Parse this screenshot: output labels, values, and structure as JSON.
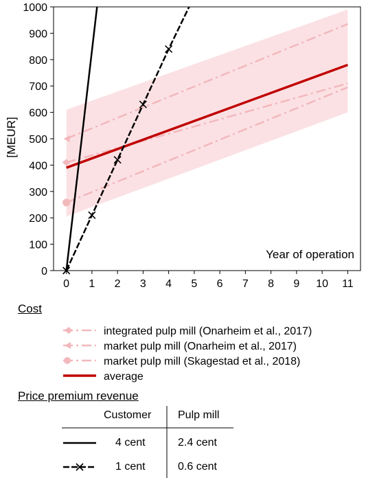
{
  "chart_data": {
    "type": "line",
    "ylabel": "[MEUR]",
    "xlabel": "Year of operation",
    "xlim": [
      -0.5,
      11.5
    ],
    "ylim": [
      0,
      1000
    ],
    "x_ticks": [
      0,
      1,
      2,
      3,
      4,
      5,
      6,
      7,
      8,
      9,
      10,
      11
    ],
    "y_ticks": [
      0,
      100,
      200,
      300,
      400,
      500,
      600,
      700,
      800,
      900,
      1000
    ],
    "grid": false,
    "cost_band": {
      "x": [
        0,
        11
      ],
      "lower": [
        205,
        600
      ],
      "upper": [
        610,
        990
      ],
      "color": "#fadadd"
    },
    "series": [
      {
        "name": "integrated pulp mill (Onarheim et al., 2017)",
        "x": [
          0,
          11
        ],
        "y": [
          410,
          710
        ],
        "color": "#f2b8bc",
        "style": "dashdot",
        "marker": "diamond"
      },
      {
        "name": "market pulp mill (Onarheim et al., 2017)",
        "x": [
          0,
          11
        ],
        "y": [
          500,
          935
        ],
        "color": "#f2b8bc",
        "style": "dashdot",
        "marker": "arrow"
      },
      {
        "name": "market pulp mill (Skagestad et al., 2018)",
        "x": [
          0,
          11
        ],
        "y": [
          258,
          695
        ],
        "color": "#f2b8bc",
        "style": "dashdot",
        "marker": "circle"
      },
      {
        "name": "average",
        "x": [
          0,
          11
        ],
        "y": [
          390,
          780
        ],
        "color": "#c00000",
        "style": "solid",
        "marker": "none"
      },
      {
        "name": "4 cent / 2.4 cent",
        "x": [
          0,
          1.2
        ],
        "y": [
          0,
          1000
        ],
        "color": "#000000",
        "style": "solid",
        "marker": "none"
      },
      {
        "name": "1 cent / 0.6 cent",
        "x": [
          0,
          1,
          2,
          3,
          4,
          4.8
        ],
        "y": [
          0,
          210,
          420,
          630,
          840,
          1000
        ],
        "color": "#000000",
        "style": "dashed",
        "marker": "x",
        "marker_points": [
          0,
          1,
          2,
          3,
          4
        ]
      }
    ]
  },
  "legend": {
    "cost_header": "Cost",
    "cost_items": [
      {
        "label": "integrated pulp mill (Onarheim et al., 2017)",
        "color": "#f2b8bc",
        "marker": "diamond"
      },
      {
        "label": "market pulp mill (Onarheim et al., 2017)",
        "color": "#f2b8bc",
        "marker": "arrow"
      },
      {
        "label": "market pulp mill (Skagestad et al., 2018)",
        "color": "#f2b8bc",
        "marker": "circle"
      },
      {
        "label": "average",
        "color": "#c00000",
        "marker": "none"
      }
    ],
    "revenue_header": "Price premium revenue",
    "table": {
      "col_customer": "Customer",
      "col_pulp": "Pulp mill",
      "rows": [
        {
          "customer": "4 cent",
          "pulp": "2.4 cent",
          "line": "solid"
        },
        {
          "customer": "1 cent",
          "pulp": "0.6 cent",
          "line": "dashed-x"
        }
      ]
    }
  }
}
